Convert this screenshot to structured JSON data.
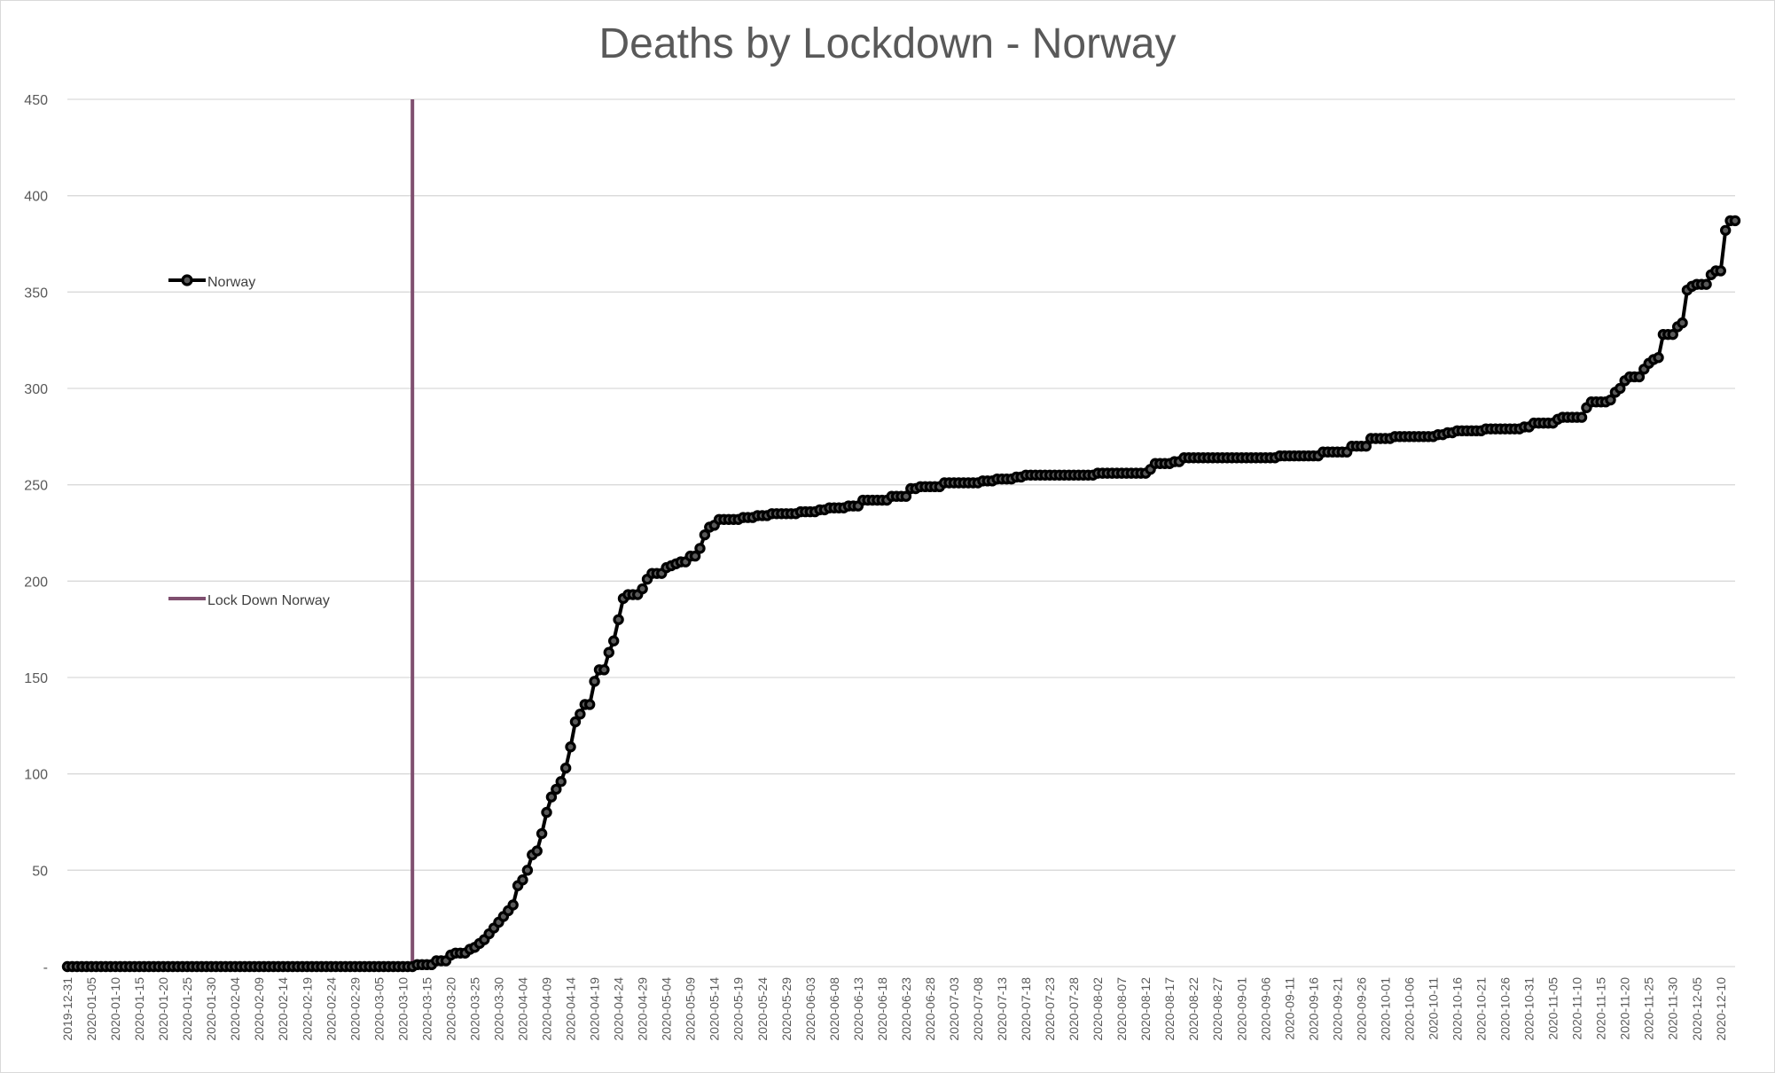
{
  "chart_data": {
    "type": "line",
    "title": "Deaths by Lockdown - Norway",
    "xlabel": "",
    "ylabel": "",
    "ylim": [
      0,
      450
    ],
    "y_ticks": [
      0,
      50,
      100,
      150,
      200,
      250,
      300,
      350,
      400,
      450
    ],
    "y_tick_labels": [
      "-",
      "50",
      "100",
      "150",
      "200",
      "250",
      "300",
      "350",
      "400",
      "450"
    ],
    "x_range": [
      "2019-12-31",
      "2020-12-13"
    ],
    "x_tick_labels": [
      "2019-12-31",
      "2020-01-05",
      "2020-01-10",
      "2020-01-15",
      "2020-01-20",
      "2020-01-25",
      "2020-01-30",
      "2020-02-04",
      "2020-02-09",
      "2020-02-14",
      "2020-02-19",
      "2020-02-24",
      "2020-02-29",
      "2020-03-05",
      "2020-03-10",
      "2020-03-15",
      "2020-03-20",
      "2020-03-25",
      "2020-03-30",
      "2020-04-04",
      "2020-04-09",
      "2020-04-14",
      "2020-04-19",
      "2020-04-24",
      "2020-04-29",
      "2020-05-04",
      "2020-05-09",
      "2020-05-14",
      "2020-05-19",
      "2020-05-24",
      "2020-05-29",
      "2020-06-03",
      "2020-06-08",
      "2020-06-13",
      "2020-06-18",
      "2020-06-23",
      "2020-06-28",
      "2020-07-03",
      "2020-07-08",
      "2020-07-13",
      "2020-07-18",
      "2020-07-23",
      "2020-07-28",
      "2020-08-02",
      "2020-08-07",
      "2020-08-12",
      "2020-08-17",
      "2020-08-22",
      "2020-08-27",
      "2020-09-01",
      "2020-09-06",
      "2020-09-11",
      "2020-09-16",
      "2020-09-21",
      "2020-09-26",
      "2020-10-01",
      "2020-10-06",
      "2020-10-11",
      "2020-10-16",
      "2020-10-21",
      "2020-10-26",
      "2020-10-31",
      "2020-11-05",
      "2020-11-10",
      "2020-11-15",
      "2020-11-20",
      "2020-11-25",
      "2020-11-30",
      "2020-12-05",
      "2020-12-10"
    ],
    "grid": true,
    "series": [
      {
        "name": "Norway",
        "color": "#000000",
        "marker": "circle",
        "points": [
          [
            "2019-12-31",
            0
          ],
          [
            "2020-03-12",
            0
          ],
          [
            "2020-03-13",
            1
          ],
          [
            "2020-03-16",
            1
          ],
          [
            "2020-03-17",
            3
          ],
          [
            "2020-03-19",
            3
          ],
          [
            "2020-03-20",
            6
          ],
          [
            "2020-03-21",
            7
          ],
          [
            "2020-03-22",
            7
          ],
          [
            "2020-03-23",
            7
          ],
          [
            "2020-03-24",
            9
          ],
          [
            "2020-03-25",
            10
          ],
          [
            "2020-03-26",
            12
          ],
          [
            "2020-03-27",
            14
          ],
          [
            "2020-03-28",
            17
          ],
          [
            "2020-03-29",
            20
          ],
          [
            "2020-03-30",
            23
          ],
          [
            "2020-03-31",
            26
          ],
          [
            "2020-04-01",
            29
          ],
          [
            "2020-04-02",
            32
          ],
          [
            "2020-04-03",
            42
          ],
          [
            "2020-04-04",
            45
          ],
          [
            "2020-04-05",
            50
          ],
          [
            "2020-04-06",
            58
          ],
          [
            "2020-04-07",
            60
          ],
          [
            "2020-04-08",
            69
          ],
          [
            "2020-04-09",
            80
          ],
          [
            "2020-04-10",
            88
          ],
          [
            "2020-04-11",
            92
          ],
          [
            "2020-04-12",
            96
          ],
          [
            "2020-04-13",
            103
          ],
          [
            "2020-04-14",
            114
          ],
          [
            "2020-04-15",
            127
          ],
          [
            "2020-04-16",
            131
          ],
          [
            "2020-04-17",
            136
          ],
          [
            "2020-04-18",
            136
          ],
          [
            "2020-04-19",
            148
          ],
          [
            "2020-04-20",
            154
          ],
          [
            "2020-04-21",
            154
          ],
          [
            "2020-04-22",
            163
          ],
          [
            "2020-04-23",
            169
          ],
          [
            "2020-04-24",
            180
          ],
          [
            "2020-04-25",
            191
          ],
          [
            "2020-04-26",
            193
          ],
          [
            "2020-04-27",
            193
          ],
          [
            "2020-04-28",
            193
          ],
          [
            "2020-04-29",
            196
          ],
          [
            "2020-04-30",
            201
          ],
          [
            "2020-05-01",
            204
          ],
          [
            "2020-05-02",
            204
          ],
          [
            "2020-05-03",
            204
          ],
          [
            "2020-05-04",
            207
          ],
          [
            "2020-05-05",
            208
          ],
          [
            "2020-05-06",
            209
          ],
          [
            "2020-05-07",
            210
          ],
          [
            "2020-05-08",
            210
          ],
          [
            "2020-05-09",
            213
          ],
          [
            "2020-05-10",
            213
          ],
          [
            "2020-05-11",
            217
          ],
          [
            "2020-05-12",
            224
          ],
          [
            "2020-05-13",
            228
          ],
          [
            "2020-05-14",
            229
          ],
          [
            "2020-05-15",
            232
          ],
          [
            "2020-05-20",
            233
          ],
          [
            "2020-05-23",
            234
          ],
          [
            "2020-05-26",
            235
          ],
          [
            "2020-06-01",
            236
          ],
          [
            "2020-06-05",
            237
          ],
          [
            "2020-06-07",
            238
          ],
          [
            "2020-06-11",
            239
          ],
          [
            "2020-06-14",
            242
          ],
          [
            "2020-06-20",
            244
          ],
          [
            "2020-06-24",
            248
          ],
          [
            "2020-06-26",
            249
          ],
          [
            "2020-07-01",
            251
          ],
          [
            "2020-07-09",
            252
          ],
          [
            "2020-07-12",
            253
          ],
          [
            "2020-07-16",
            254
          ],
          [
            "2020-07-18",
            255
          ],
          [
            "2020-08-02",
            256
          ],
          [
            "2020-08-13",
            258
          ],
          [
            "2020-08-14",
            261
          ],
          [
            "2020-08-18",
            262
          ],
          [
            "2020-08-20",
            264
          ],
          [
            "2020-09-09",
            265
          ],
          [
            "2020-09-18",
            267
          ],
          [
            "2020-09-24",
            270
          ],
          [
            "2020-09-28",
            274
          ],
          [
            "2020-10-03",
            275
          ],
          [
            "2020-10-12",
            276
          ],
          [
            "2020-10-14",
            277
          ],
          [
            "2020-10-16",
            278
          ],
          [
            "2020-10-22",
            279
          ],
          [
            "2020-10-30",
            280
          ],
          [
            "2020-11-01",
            282
          ],
          [
            "2020-11-06",
            284
          ],
          [
            "2020-11-07",
            285
          ],
          [
            "2020-11-11",
            285
          ],
          [
            "2020-11-12",
            290
          ],
          [
            "2020-11-13",
            293
          ],
          [
            "2020-11-17",
            294
          ],
          [
            "2020-11-18",
            298
          ],
          [
            "2020-11-19",
            300
          ],
          [
            "2020-11-20",
            304
          ],
          [
            "2020-11-21",
            306
          ],
          [
            "2020-11-23",
            306
          ],
          [
            "2020-11-24",
            310
          ],
          [
            "2020-11-25",
            313
          ],
          [
            "2020-11-26",
            315
          ],
          [
            "2020-11-27",
            316
          ],
          [
            "2020-11-28",
            328
          ],
          [
            "2020-11-30",
            328
          ],
          [
            "2020-12-01",
            332
          ],
          [
            "2020-12-02",
            334
          ],
          [
            "2020-12-03",
            351
          ],
          [
            "2020-12-04",
            353
          ],
          [
            "2020-12-05",
            354
          ],
          [
            "2020-12-07",
            354
          ],
          [
            "2020-12-08",
            359
          ],
          [
            "2020-12-09",
            361
          ],
          [
            "2020-12-10",
            361
          ],
          [
            "2020-12-11",
            382
          ],
          [
            "2020-12-12",
            387
          ],
          [
            "2020-12-13",
            387
          ]
        ]
      },
      {
        "name": "Lock Down Norway",
        "color": "#7f4f6f",
        "type": "vertical-line",
        "x": "2020-03-12",
        "y_range": [
          0,
          450
        ]
      }
    ],
    "legend": [
      {
        "label": "Norway",
        "color": "#000000",
        "marker": "circle"
      },
      {
        "label": "Lock Down Norway",
        "color": "#7f4f6f",
        "marker": "none"
      }
    ],
    "legend_position": "left"
  }
}
